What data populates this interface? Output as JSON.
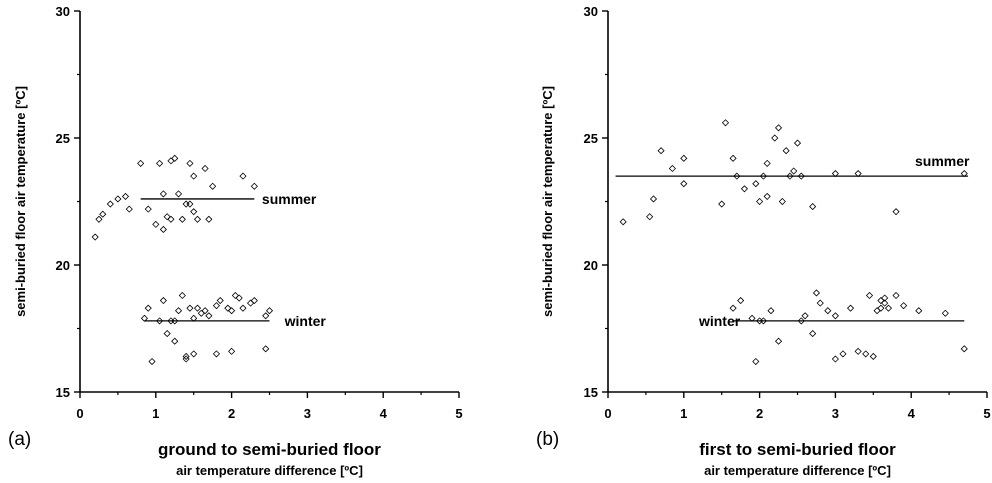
{
  "chart_data": [
    {
      "type": "scatter",
      "panel_label": "(a)",
      "xlabel": "ground to semi-buried floor",
      "xlabel_sub": "air temperature difference [ºC]",
      "ylabel": "semi-buried floor air temperature [ºC]",
      "xlim": [
        0,
        5
      ],
      "ylim": [
        15,
        30
      ],
      "x_ticks": [
        "0",
        "1",
        "2",
        "3",
        "4",
        "5"
      ],
      "y_ticks": [
        "15",
        "20",
        "25",
        "30"
      ],
      "grid": false,
      "series": [
        {
          "name": "summer",
          "marker": "diamond",
          "points": [
            [
              0.2,
              21.1
            ],
            [
              0.25,
              21.8
            ],
            [
              0.3,
              22.0
            ],
            [
              0.4,
              22.4
            ],
            [
              0.5,
              22.6
            ],
            [
              0.6,
              22.7
            ],
            [
              0.65,
              22.2
            ],
            [
              0.8,
              24.0
            ],
            [
              0.9,
              22.2
            ],
            [
              1.0,
              21.6
            ],
            [
              1.05,
              24.0
            ],
            [
              1.1,
              21.4
            ],
            [
              1.15,
              21.9
            ],
            [
              1.2,
              24.1
            ],
            [
              1.25,
              24.2
            ],
            [
              1.3,
              22.8
            ],
            [
              1.35,
              21.8
            ],
            [
              1.4,
              22.4
            ],
            [
              1.45,
              22.4
            ],
            [
              1.5,
              23.5
            ],
            [
              1.55,
              21.8
            ],
            [
              1.65,
              23.8
            ],
            [
              1.7,
              21.8
            ],
            [
              1.75,
              23.1
            ],
            [
              1.1,
              22.8
            ],
            [
              1.2,
              21.8
            ],
            [
              1.5,
              22.1
            ],
            [
              2.15,
              23.5
            ],
            [
              2.3,
              23.1
            ],
            [
              1.45,
              24.0
            ]
          ],
          "fit_line": {
            "x": [
              0.8,
              2.3
            ],
            "y": [
              22.6,
              22.6
            ]
          },
          "label_position": [
            2.4,
            22.6
          ]
        },
        {
          "name": "winter",
          "marker": "diamond",
          "points": [
            [
              0.85,
              17.9
            ],
            [
              0.9,
              18.3
            ],
            [
              0.95,
              16.2
            ],
            [
              1.05,
              17.8
            ],
            [
              1.1,
              18.6
            ],
            [
              1.15,
              17.3
            ],
            [
              1.2,
              17.8
            ],
            [
              1.25,
              17.8
            ],
            [
              1.3,
              18.2
            ],
            [
              1.35,
              18.8
            ],
            [
              1.4,
              16.4
            ],
            [
              1.45,
              18.3
            ],
            [
              1.5,
              16.5
            ],
            [
              1.55,
              18.3
            ],
            [
              1.6,
              18.1
            ],
            [
              1.65,
              18.2
            ],
            [
              1.7,
              18.0
            ],
            [
              1.8,
              18.4
            ],
            [
              1.85,
              18.6
            ],
            [
              1.95,
              18.3
            ],
            [
              2.0,
              18.2
            ],
            [
              2.05,
              18.8
            ],
            [
              2.1,
              18.7
            ],
            [
              2.25,
              18.5
            ],
            [
              2.3,
              18.6
            ],
            [
              2.45,
              18.0
            ],
            [
              2.5,
              18.2
            ],
            [
              1.4,
              16.3
            ],
            [
              1.8,
              16.5
            ],
            [
              2.0,
              16.6
            ],
            [
              2.45,
              16.7
            ],
            [
              1.25,
              17.0
            ],
            [
              1.5,
              17.9
            ],
            [
              2.15,
              18.3
            ]
          ],
          "fit_line": {
            "x": [
              0.85,
              2.5
            ],
            "y": [
              17.8,
              17.8
            ]
          },
          "label_position": [
            2.7,
            17.8
          ]
        }
      ]
    },
    {
      "type": "scatter",
      "panel_label": "(b)",
      "xlabel": "first to semi-buried floor",
      "xlabel_sub": "air temperature difference [ºC]",
      "ylabel": "semi-buried floor air temperature [ºC]",
      "xlim": [
        0,
        5
      ],
      "ylim": [
        15,
        30
      ],
      "x_ticks": [
        "0",
        "1",
        "2",
        "3",
        "4",
        "5"
      ],
      "y_ticks": [
        "15",
        "20",
        "25",
        "30"
      ],
      "grid": false,
      "series": [
        {
          "name": "summer",
          "marker": "diamond",
          "points": [
            [
              0.2,
              21.7
            ],
            [
              0.55,
              21.9
            ],
            [
              0.6,
              22.6
            ],
            [
              0.7,
              24.5
            ],
            [
              0.85,
              23.8
            ],
            [
              1.0,
              24.2
            ],
            [
              1.0,
              23.2
            ],
            [
              1.5,
              22.4
            ],
            [
              1.55,
              25.6
            ],
            [
              1.65,
              24.2
            ],
            [
              1.7,
              23.5
            ],
            [
              1.8,
              23.0
            ],
            [
              1.95,
              23.2
            ],
            [
              2.0,
              22.5
            ],
            [
              2.05,
              23.5
            ],
            [
              2.1,
              22.7
            ],
            [
              2.2,
              25.0
            ],
            [
              2.25,
              25.4
            ],
            [
              2.3,
              22.5
            ],
            [
              2.35,
              24.5
            ],
            [
              2.4,
              23.5
            ],
            [
              2.5,
              24.8
            ],
            [
              2.55,
              23.5
            ],
            [
              2.7,
              22.3
            ],
            [
              3.0,
              23.6
            ],
            [
              3.3,
              23.6
            ],
            [
              3.8,
              22.1
            ],
            [
              4.7,
              23.6
            ],
            [
              2.1,
              24.0
            ],
            [
              2.45,
              23.7
            ]
          ],
          "fit_line": {
            "x": [
              0.1,
              4.75
            ],
            "y": [
              23.5,
              23.5
            ]
          },
          "label_position": [
            4.05,
            24.1
          ]
        },
        {
          "name": "winter",
          "marker": "diamond",
          "points": [
            [
              1.65,
              18.3
            ],
            [
              1.75,
              18.6
            ],
            [
              1.9,
              17.9
            ],
            [
              1.95,
              16.2
            ],
            [
              2.05,
              17.8
            ],
            [
              2.15,
              18.2
            ],
            [
              2.25,
              17.0
            ],
            [
              2.55,
              17.8
            ],
            [
              2.7,
              17.3
            ],
            [
              2.75,
              18.9
            ],
            [
              2.8,
              18.5
            ],
            [
              2.9,
              18.2
            ],
            [
              3.0,
              16.3
            ],
            [
              3.1,
              16.5
            ],
            [
              3.2,
              18.3
            ],
            [
              3.3,
              16.6
            ],
            [
              3.4,
              16.5
            ],
            [
              3.45,
              18.8
            ],
            [
              3.5,
              16.4
            ],
            [
              3.55,
              18.2
            ],
            [
              3.6,
              18.6
            ],
            [
              3.65,
              18.7
            ],
            [
              3.7,
              18.3
            ],
            [
              3.8,
              18.8
            ],
            [
              3.9,
              18.4
            ],
            [
              4.1,
              18.2
            ],
            [
              4.45,
              18.1
            ],
            [
              4.7,
              16.7
            ],
            [
              2.0,
              17.8
            ],
            [
              3.0,
              18.0
            ],
            [
              3.6,
              18.3
            ],
            [
              3.65,
              18.5
            ],
            [
              2.6,
              18.0
            ]
          ],
          "fit_line": {
            "x": [
              1.65,
              4.7
            ],
            "y": [
              17.8,
              17.8
            ]
          },
          "label_position": [
            1.2,
            17.8
          ]
        }
      ]
    }
  ]
}
